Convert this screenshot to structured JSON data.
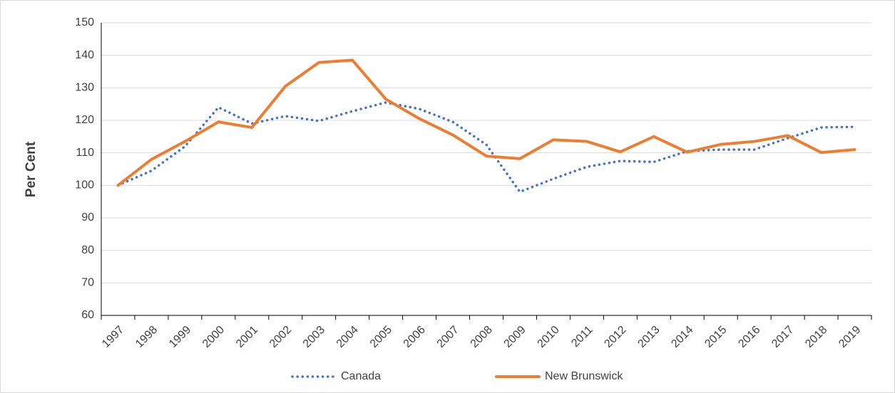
{
  "chart_data": {
    "type": "line",
    "ylabel": "Per Cent",
    "categories": [
      "1997",
      "1998",
      "1999",
      "2000",
      "2001",
      "2002",
      "2003",
      "2004",
      "2005",
      "2006",
      "2007",
      "2008",
      "2009",
      "2010",
      "2011",
      "2012",
      "2013",
      "2014",
      "2015",
      "2016",
      "2017",
      "2018",
      "2019"
    ],
    "series": [
      {
        "name": "Canada",
        "color": "#4472c4",
        "dash": "dotted",
        "values": [
          100,
          104.5,
          112,
          124,
          119,
          121.3,
          119.8,
          122.8,
          125.5,
          123.5,
          119.5,
          112.5,
          98,
          102,
          105.7,
          107.5,
          107.2,
          110.5,
          111,
          111,
          114.5,
          117.8,
          118
        ]
      },
      {
        "name": "New Brunswick",
        "color": "#ed7d31",
        "dash": "solid",
        "values": [
          100,
          108,
          113.5,
          119.5,
          117.8,
          130.5,
          137.8,
          138.5,
          126.5,
          120.5,
          115.5,
          109,
          108.2,
          114,
          113.5,
          110.3,
          115,
          110.2,
          112.6,
          113.5,
          115.3,
          110.1,
          111
        ]
      }
    ],
    "ylim": [
      60,
      150
    ],
    "yticks": [
      60,
      70,
      80,
      90,
      100,
      110,
      120,
      130,
      140,
      150
    ],
    "grid": true,
    "legend": "bottom"
  }
}
